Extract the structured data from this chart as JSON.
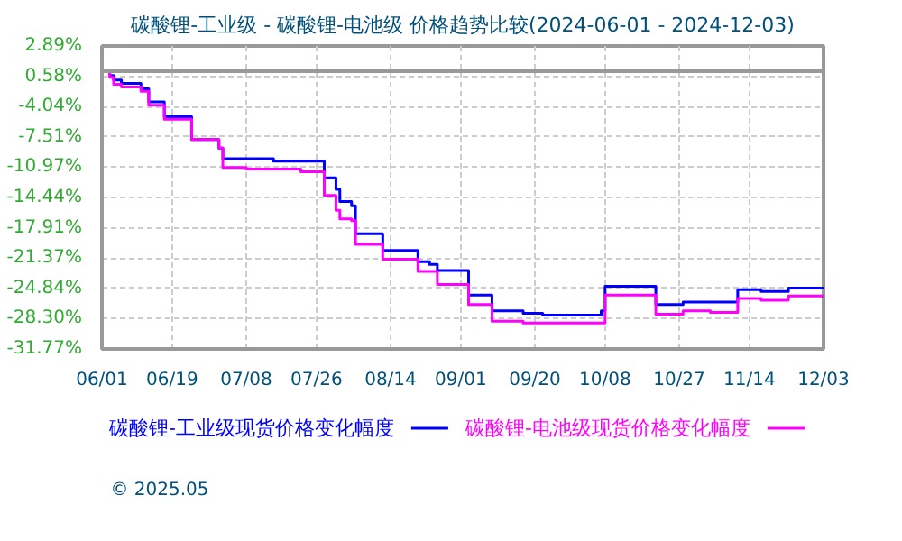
{
  "chart_data": {
    "type": "step",
    "title": "碳酸锂-工业级 - 碳酸锂-电池级 价格趋势比较(2024-06-01 - 2024-12-03)",
    "xlim": [
      "2024-06-01",
      "2024-12-03"
    ],
    "xticks": [
      {
        "value": "2024-06-01",
        "label": "06/01"
      },
      {
        "value": "2024-06-19",
        "label": "06/19"
      },
      {
        "value": "2024-07-08",
        "label": "07/08"
      },
      {
        "value": "2024-07-26",
        "label": "07/26"
      },
      {
        "value": "2024-08-14",
        "label": "08/14"
      },
      {
        "value": "2024-09-01",
        "label": "09/01"
      },
      {
        "value": "2024-09-20",
        "label": "09/20"
      },
      {
        "value": "2024-10-08",
        "label": "10/08"
      },
      {
        "value": "2024-10-27",
        "label": "10/27"
      },
      {
        "value": "2024-11-14",
        "label": "11/14"
      },
      {
        "value": "2024-12-03",
        "label": "12/03"
      }
    ],
    "ylim": [
      -31.77,
      2.89
    ],
    "yticks": [
      {
        "value": 2.89,
        "label": "2.89%"
      },
      {
        "value": -0.58,
        "label": "0.58%"
      },
      {
        "value": -4.04,
        "label": "-4.04%"
      },
      {
        "value": -7.51,
        "label": "-7.51%"
      },
      {
        "value": -10.97,
        "label": "-10.97%"
      },
      {
        "value": -14.44,
        "label": "-14.44%"
      },
      {
        "value": -17.91,
        "label": "-17.91%"
      },
      {
        "value": -21.37,
        "label": "-21.37%"
      },
      {
        "value": -24.84,
        "label": "-24.84%"
      },
      {
        "value": -28.3,
        "label": "-28.30%"
      },
      {
        "value": -31.77,
        "label": "-31.77%"
      }
    ],
    "grid": true,
    "legend": "bottom",
    "ref_lines": [
      {
        "axis": "y",
        "value": 0,
        "label": null,
        "color": "#999999"
      }
    ],
    "annotations": [
      "© 2025.05"
    ],
    "series": [
      {
        "name": "碳酸锂-工业级现货价格变化幅度",
        "color": "#0000ff",
        "x": [
          "2024-06-01",
          "2024-06-03",
          "2024-06-04",
          "2024-06-06",
          "2024-06-11",
          "2024-06-13",
          "2024-06-17",
          "2024-06-24",
          "2024-07-01",
          "2024-07-02",
          "2024-07-15",
          "2024-07-28",
          "2024-07-31",
          "2024-08-01",
          "2024-08-04",
          "2024-08-05",
          "2024-08-12",
          "2024-08-21",
          "2024-08-24",
          "2024-08-26",
          "2024-09-03",
          "2024-09-09",
          "2024-09-17",
          "2024-09-22",
          "2024-10-07",
          "2024-10-08",
          "2024-10-21",
          "2024-10-28",
          "2024-11-11",
          "2024-11-17",
          "2024-11-24",
          "2024-12-03"
        ],
        "values": [
          0,
          -0.5,
          -1.0,
          -1.4,
          -2.0,
          -3.5,
          -5.2,
          -7.8,
          -8.8,
          -10.0,
          -10.3,
          -12.2,
          -13.5,
          -14.9,
          -15.4,
          -18.6,
          -20.5,
          -21.8,
          -22.1,
          -22.8,
          -25.6,
          -27.4,
          -27.7,
          -27.9,
          -27.4,
          -24.6,
          -26.7,
          -26.4,
          -25.0,
          -25.2,
          -24.8,
          -24.8
        ]
      },
      {
        "name": "碳酸锂-电池级现货价格变化幅度",
        "color": "#ff00ff",
        "x": [
          "2024-06-01",
          "2024-06-03",
          "2024-06-04",
          "2024-06-06",
          "2024-06-11",
          "2024-06-13",
          "2024-06-17",
          "2024-06-24",
          "2024-07-01",
          "2024-07-02",
          "2024-07-08",
          "2024-07-22",
          "2024-07-28",
          "2024-07-31",
          "2024-08-01",
          "2024-08-04",
          "2024-08-05",
          "2024-08-12",
          "2024-08-21",
          "2024-08-26",
          "2024-09-03",
          "2024-09-09",
          "2024-09-17",
          "2024-10-08",
          "2024-10-21",
          "2024-10-28",
          "2024-11-04",
          "2024-11-11",
          "2024-11-17",
          "2024-11-24",
          "2024-12-03"
        ],
        "values": [
          0,
          -0.7,
          -1.5,
          -1.8,
          -2.3,
          -3.9,
          -5.5,
          -7.8,
          -8.8,
          -11.0,
          -11.2,
          -11.5,
          -14.2,
          -15.9,
          -16.9,
          -17.1,
          -19.8,
          -21.5,
          -22.9,
          -24.4,
          -26.7,
          -28.6,
          -28.8,
          -25.6,
          -27.8,
          -27.4,
          -27.6,
          -26.0,
          -26.2,
          -25.7,
          -25.9
        ]
      }
    ]
  }
}
